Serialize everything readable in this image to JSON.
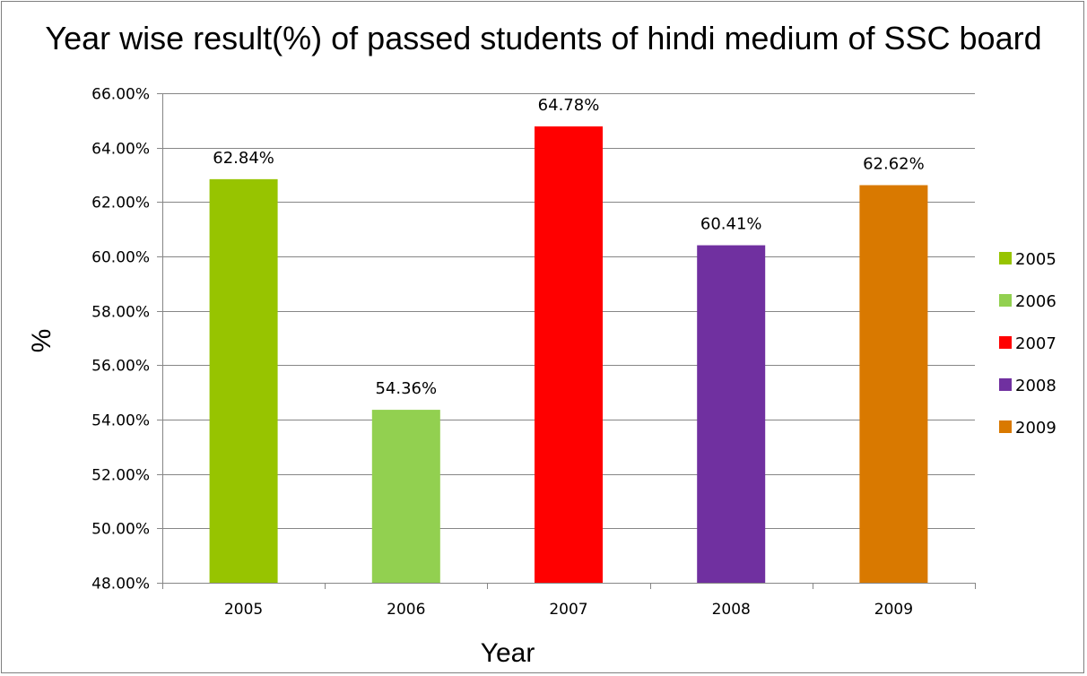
{
  "chart_data": {
    "type": "bar",
    "title": "Year wise result(%) of passed students of hindi medium of SSC board",
    "xlabel": "Year",
    "ylabel": "%",
    "categories": [
      "2005",
      "2006",
      "2007",
      "2008",
      "2009"
    ],
    "values": [
      62.84,
      54.36,
      64.78,
      60.41,
      62.62
    ],
    "data_labels": [
      "62.84%",
      "54.36%",
      "64.78%",
      "60.41%",
      "62.62%"
    ],
    "colors": [
      "#97c400",
      "#92d050",
      "#ff0000",
      "#7030a0",
      "#d97900"
    ],
    "ylim": [
      48,
      66
    ],
    "yticks": [
      48,
      50,
      52,
      54,
      56,
      58,
      60,
      62,
      64,
      66
    ],
    "ytick_labels": [
      "48.00%",
      "50.00%",
      "52.00%",
      "54.00%",
      "56.00%",
      "58.00%",
      "60.00%",
      "62.00%",
      "64.00%",
      "66.00%"
    ],
    "grid": true,
    "legend": {
      "position": "right",
      "entries": [
        "2005",
        "2006",
        "2007",
        "2008",
        "2009"
      ]
    },
    "axis_color": "#868686",
    "grid_color": "#868686"
  }
}
